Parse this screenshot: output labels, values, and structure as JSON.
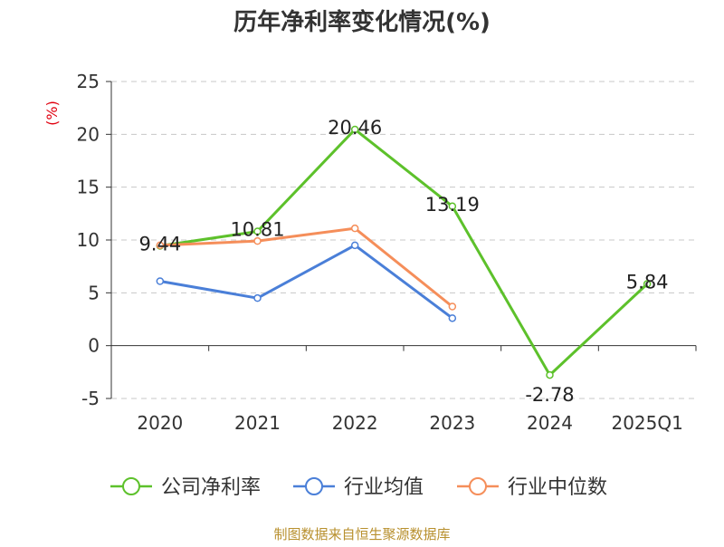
{
  "chart_data": {
    "type": "line",
    "title": "历年净利率变化情况(%)",
    "ylabel": "(%)",
    "xlabel": "",
    "categories": [
      "2020",
      "2021",
      "2022",
      "2023",
      "2024",
      "2025Q1"
    ],
    "ylim": [
      -5,
      25
    ],
    "yticks": [
      25,
      20,
      15,
      10,
      5,
      0,
      -5
    ],
    "grid": true,
    "legend_position": "bottom",
    "series": [
      {
        "name": "公司净利率",
        "color": "#5dc12b",
        "values": [
          9.44,
          10.81,
          20.46,
          13.19,
          -2.78,
          5.84
        ],
        "labels": [
          "9.44",
          "10.81",
          "20.46",
          "13.19",
          "-2.78",
          "5.84"
        ]
      },
      {
        "name": "行业均值",
        "color": "#4a7fd8",
        "values": [
          6.1,
          4.5,
          9.5,
          2.6,
          null,
          null
        ]
      },
      {
        "name": "行业中位数",
        "color": "#f58e5a",
        "values": [
          9.5,
          9.9,
          11.1,
          3.7,
          null,
          null
        ]
      }
    ]
  },
  "footer": {
    "source": "制图数据来自恒生聚源数据库"
  }
}
